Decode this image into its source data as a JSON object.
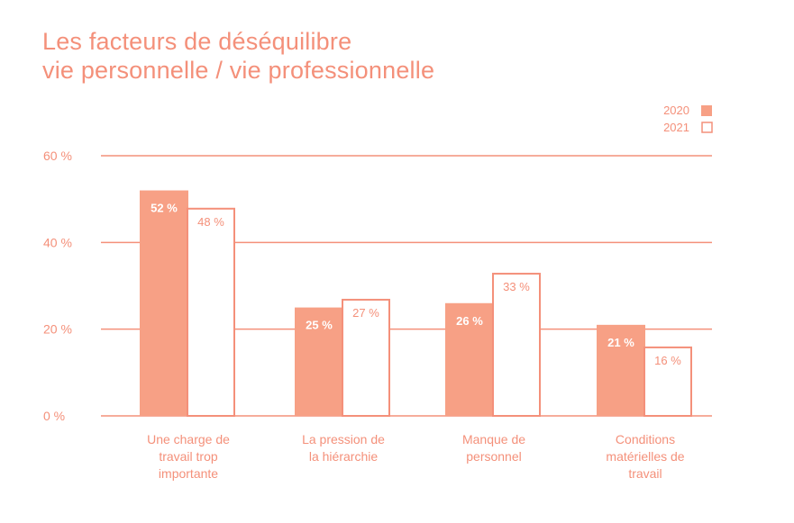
{
  "title_line1": "Les facteurs de déséquilibre",
  "title_line2": "vie personnelle / vie professionnelle",
  "colors": {
    "accent": "#f4907a",
    "fill2020": "#f7a085",
    "stroke2021": "#f4907a"
  },
  "chart_data": {
    "type": "bar",
    "title": "Les facteurs de déséquilibre vie personnelle / vie professionnelle",
    "categories": [
      [
        "Une charge de",
        "travail trop",
        "importante"
      ],
      [
        "La pression de",
        "la hiérarchie"
      ],
      [
        "Manque de",
        "personnel"
      ],
      [
        "Conditions",
        "matérielles de",
        "travail"
      ]
    ],
    "series": [
      {
        "name": "2020",
        "values": [
          52,
          25,
          26,
          21
        ],
        "labels": [
          "52 %",
          "25 %",
          "26 %",
          "21 %"
        ]
      },
      {
        "name": "2021",
        "values": [
          48,
          27,
          33,
          16
        ],
        "labels": [
          "48 %",
          "27 %",
          "33 %",
          "16 %"
        ]
      }
    ],
    "ylim": [
      0,
      60
    ],
    "yticks": [
      0,
      20,
      40,
      60
    ],
    "ytick_labels": [
      "0 %",
      "20 %",
      "40 %",
      "60 %"
    ],
    "grid": true,
    "legend_position": "top-right"
  }
}
